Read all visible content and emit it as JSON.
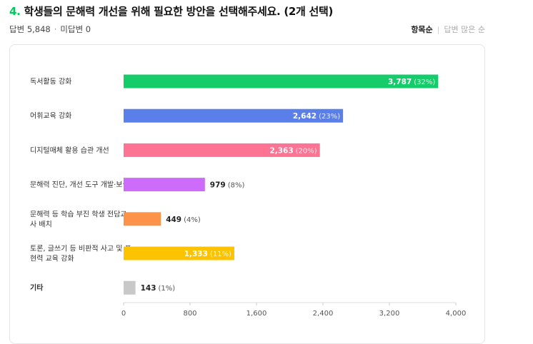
{
  "question": {
    "number": "4.",
    "title": "학생들의 문해력 개선을 위해 필요한 방안을 선택해주세요. (2개 선택)"
  },
  "meta": {
    "answered": "답변 5,848",
    "unanswered": "미답변 0"
  },
  "sort": {
    "active": "항목순",
    "inactive": "답변 많은 순"
  },
  "colors": {
    "accent": "#03c75a",
    "bars": [
      "#16cc6a",
      "#5b7fe8",
      "#fc7393",
      "#cd6cfb",
      "#fd9348",
      "#fdc300",
      "#c8c8c8"
    ]
  },
  "chart_data": {
    "type": "bar",
    "orientation": "horizontal",
    "categories": [
      [
        "독서활동 강화"
      ],
      [
        "어휘교육 강화"
      ],
      [
        "디지털매체 활용 습관 개선"
      ],
      [
        "문해력 진단, 개선 도구 개발·보급"
      ],
      [
        "문해력 등 학습 부진 학생 전담교",
        "사 배치"
      ],
      [
        "토론, 글쓰기 등 비판적 사고 및 표",
        "현력 교육 강화"
      ],
      [
        "기타"
      ]
    ],
    "values": [
      3787,
      2642,
      2363,
      979,
      449,
      1333,
      143
    ],
    "value_labels": [
      "3,787",
      "2,642",
      "2,363",
      "979",
      "449",
      "1,333",
      "143"
    ],
    "percent_labels": [
      "(32%)",
      "(23%)",
      "(20%)",
      "(8%)",
      "(4%)",
      "(11%)",
      "(1%)"
    ],
    "xlim": [
      0,
      4000
    ],
    "xticks": [
      0,
      800,
      1600,
      2400,
      3200,
      4000
    ],
    "xtick_labels": [
      "0",
      "800",
      "1,600",
      "2,400",
      "3,200",
      "4,000"
    ],
    "grid": false
  }
}
